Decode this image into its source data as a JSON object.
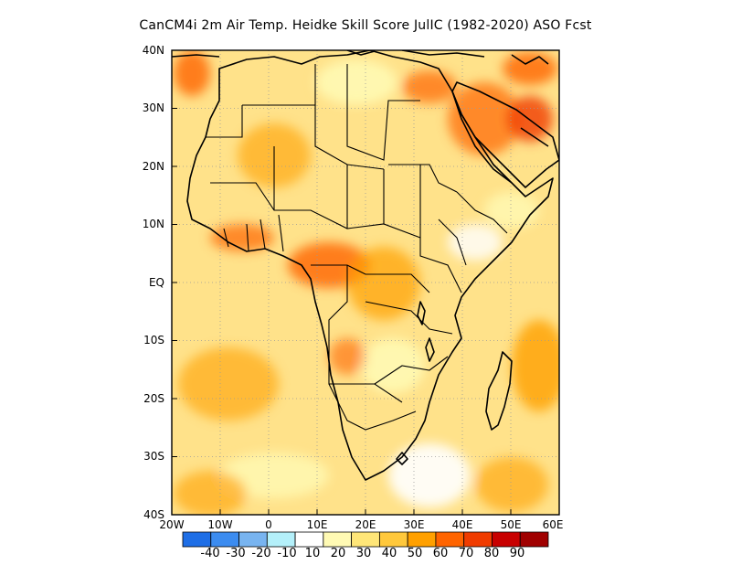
{
  "title": "CanCM4i  2m Air Temp. Heidke Skill Score JulIC (1982-2020) ASO Fcst",
  "axes": {
    "lat_ticks": [
      "40N",
      "30N",
      "20N",
      "10N",
      "EQ",
      "10S",
      "20S",
      "30S",
      "40S"
    ],
    "lon_ticks": [
      "20W",
      "10W",
      "0",
      "10E",
      "20E",
      "30E",
      "40E",
      "50E",
      "60E"
    ]
  },
  "colorbar": {
    "labels": [
      "-40",
      "-30",
      "-20",
      "-10",
      "10",
      "20",
      "30",
      "40",
      "50",
      "60",
      "70",
      "80",
      "90"
    ],
    "colors": [
      "#1e6ee6",
      "#3c8cf0",
      "#78b4f0",
      "#b4f0fa",
      "#ffffff",
      "#fffab4",
      "#ffe678",
      "#ffc83c",
      "#ffa000",
      "#ff6400",
      "#f03c00",
      "#c80000",
      "#a00000"
    ]
  },
  "map": {
    "background": "#ffe28a",
    "coastline_color": "#000000",
    "grid": "dotted"
  }
}
